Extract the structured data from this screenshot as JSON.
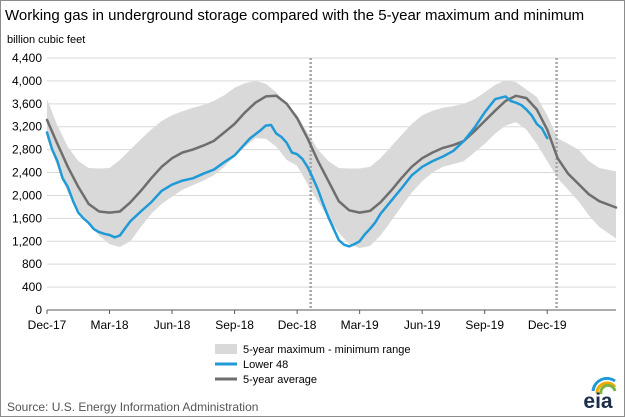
{
  "header": {
    "title": "Working gas in underground  storage compared with the 5-year maximum and minimum",
    "unit_label": "billion cubic feet"
  },
  "footer": {
    "source": "Source:  U.S. Energy Information Administration",
    "logo_text": "eia"
  },
  "colors": {
    "range_band": "#d9d9d9",
    "lower48": "#1f9ad6",
    "five_year_avg": "#6e6e6e",
    "divider": "#a6a6a6"
  },
  "chart_data": {
    "type": "line",
    "title": "Working gas in underground  storage compared with the 5-year maximum and minimum",
    "ylabel": "billion cubic feet",
    "ylim": [
      0,
      4400
    ],
    "y_ticks": [
      0,
      400,
      800,
      1200,
      1600,
      2000,
      2400,
      2800,
      3200,
      3600,
      4000,
      4400
    ],
    "y_tick_labels": [
      "0",
      "400",
      "800",
      "1,200",
      "1,600",
      "2,000",
      "2,400",
      "2,800",
      "3,200",
      "3,600",
      "4,000",
      "4,400"
    ],
    "x_ticks": [
      "Dec-17",
      "Mar-18",
      "Jun-18",
      "Sep-18",
      "Dec-18",
      "Mar-19",
      "Jun-19",
      "Sep-19",
      "Dec-19"
    ],
    "x_tick_months": [
      0,
      3,
      6,
      9,
      12,
      15,
      18,
      21,
      24
    ],
    "xlim_months": [
      0,
      27.3
    ],
    "grid": "horizontal",
    "legend_position": "bottom",
    "vertical_markers_months": [
      12.65,
      24.45
    ],
    "legend": [
      "5-year maximum - minimum range",
      "Lower 48",
      "5-year average"
    ],
    "series": [
      {
        "name": "5-year maximum - minimum range",
        "kind": "band",
        "x_months": [
          0,
          0.5,
          1,
          1.5,
          2,
          2.5,
          3,
          3.5,
          4,
          4.5,
          5,
          5.5,
          6,
          6.5,
          7,
          7.5,
          8,
          8.5,
          9,
          9.5,
          10,
          10.5,
          11,
          11.5,
          12,
          12.5,
          13,
          13.5,
          14,
          14.5,
          15,
          15.5,
          16,
          16.5,
          17,
          17.5,
          18,
          18.5,
          19,
          19.5,
          20,
          20.5,
          21,
          21.5,
          22,
          22.5,
          23,
          23.5,
          24,
          24.5,
          25,
          25.5,
          26,
          26.5,
          27.3
        ],
        "upper": [
          3680,
          3220,
          2850,
          2600,
          2480,
          2470,
          2480,
          2620,
          2800,
          2980,
          3150,
          3300,
          3400,
          3470,
          3530,
          3580,
          3650,
          3750,
          3880,
          3960,
          4000,
          3950,
          3800,
          3600,
          3400,
          3100,
          2800,
          2600,
          2480,
          2470,
          2470,
          2500,
          2650,
          2850,
          3050,
          3250,
          3400,
          3480,
          3530,
          3560,
          3600,
          3680,
          3800,
          3930,
          4010,
          3980,
          3850,
          3720,
          3400,
          3000,
          2900,
          2800,
          2600,
          2480,
          2420
        ],
        "lower": [
          3000,
          2500,
          2050,
          1750,
          1500,
          1300,
          1150,
          1100,
          1200,
          1450,
          1680,
          1850,
          1980,
          2100,
          2180,
          2260,
          2350,
          2500,
          2680,
          2850,
          3000,
          2990,
          2850,
          2620,
          2520,
          2200,
          1900,
          1600,
          1350,
          1150,
          1080,
          1120,
          1300,
          1550,
          1800,
          2050,
          2250,
          2400,
          2500,
          2550,
          2600,
          2750,
          2900,
          3080,
          3220,
          3280,
          3150,
          2900,
          2600,
          2300,
          2100,
          1900,
          1650,
          1450,
          1250
        ]
      },
      {
        "name": "Lower 48",
        "x_months": [
          0,
          0.25,
          0.5,
          0.75,
          1,
          1.25,
          1.5,
          1.75,
          2,
          2.25,
          2.5,
          2.75,
          3,
          3.25,
          3.5,
          3.75,
          4,
          4.5,
          5,
          5.5,
          6,
          6.5,
          7,
          7.5,
          8,
          8.5,
          9,
          9.25,
          9.5,
          9.75,
          10,
          10.25,
          10.5,
          10.75,
          11,
          11.25,
          11.5,
          11.75,
          12,
          12.25,
          12.5,
          12.75,
          13,
          13.25,
          13.5,
          13.75,
          14,
          14.25,
          14.5,
          14.75,
          15,
          15.25,
          15.5,
          15.75,
          16,
          16.5,
          17,
          17.5,
          18,
          18.5,
          19,
          19.5,
          20,
          20.5,
          21,
          21.5,
          22,
          22.25,
          22.5,
          22.75,
          23,
          23.25,
          23.5,
          23.75,
          24
        ],
        "values": [
          3100,
          2800,
          2600,
          2300,
          2150,
          1900,
          1700,
          1600,
          1520,
          1410,
          1360,
          1330,
          1310,
          1270,
          1300,
          1430,
          1550,
          1720,
          1880,
          2080,
          2190,
          2260,
          2300,
          2380,
          2450,
          2580,
          2700,
          2800,
          2900,
          3000,
          3070,
          3140,
          3220,
          3230,
          3080,
          3020,
          2920,
          2750,
          2720,
          2640,
          2500,
          2310,
          2100,
          1850,
          1620,
          1420,
          1220,
          1140,
          1110,
          1150,
          1200,
          1320,
          1420,
          1530,
          1680,
          1900,
          2120,
          2350,
          2500,
          2600,
          2680,
          2780,
          2950,
          3180,
          3450,
          3680,
          3730,
          3650,
          3620,
          3580,
          3500,
          3400,
          3250,
          3170,
          3000
        ]
      },
      {
        "name": "5-year average",
        "x_months": [
          0,
          0.5,
          1,
          1.5,
          2,
          2.5,
          3,
          3.5,
          4,
          4.5,
          5,
          5.5,
          6,
          6.5,
          7,
          7.5,
          8,
          8.5,
          9,
          9.5,
          10,
          10.5,
          11,
          11.5,
          12,
          12.5,
          13,
          13.5,
          14,
          14.5,
          15,
          15.5,
          16,
          16.5,
          17,
          17.5,
          18,
          18.5,
          19,
          19.5,
          20,
          20.5,
          21,
          21.5,
          22,
          22.5,
          23,
          23.5,
          24,
          24.5,
          25,
          25.5,
          26,
          26.5,
          27.3
        ],
        "values": [
          3320,
          2900,
          2500,
          2150,
          1850,
          1720,
          1700,
          1720,
          1880,
          2080,
          2300,
          2500,
          2650,
          2750,
          2800,
          2870,
          2950,
          3100,
          3250,
          3450,
          3620,
          3730,
          3740,
          3600,
          3350,
          3000,
          2600,
          2250,
          1900,
          1740,
          1700,
          1730,
          1880,
          2080,
          2300,
          2500,
          2650,
          2750,
          2830,
          2880,
          2950,
          3120,
          3300,
          3480,
          3650,
          3740,
          3700,
          3500,
          3150,
          2650,
          2380,
          2200,
          2020,
          1900,
          1790
        ]
      }
    ]
  }
}
